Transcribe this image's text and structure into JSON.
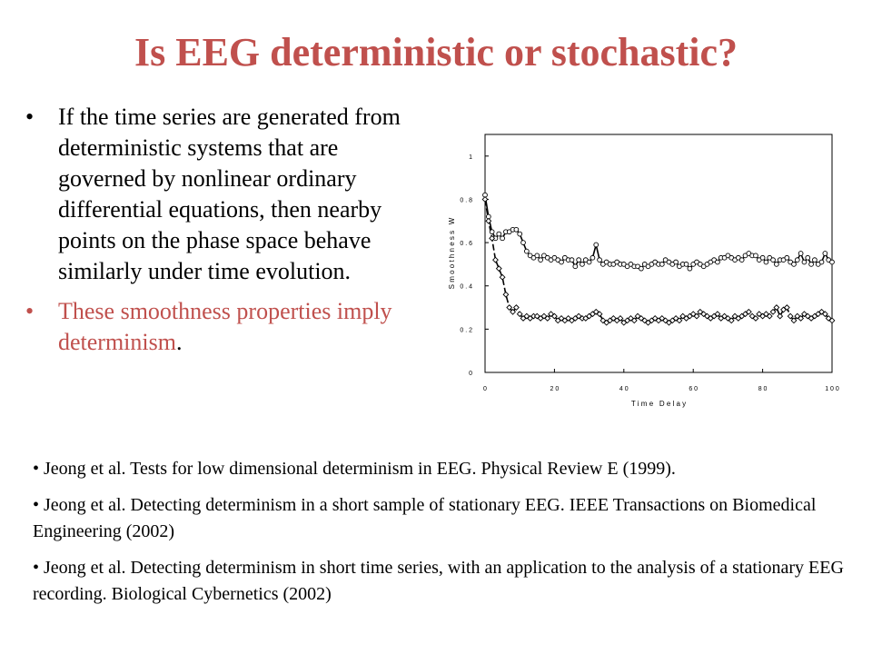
{
  "slide": {
    "title": "Is EEG deterministic or stochastic?",
    "bullet_char": "•",
    "bullets": [
      "If the time series are generated from deterministic systems that are governed by nonlinear ordinary differential equations, then nearby points on the phase space behave similarly under time evolution.",
      "These smoothness properties imply determinism"
    ],
    "bullet2_period": ".",
    "references": [
      "• Jeong et al. Tests for low dimensional determinism in EEG. Physical Review E (1999).",
      "• Jeong et al. Detecting determinism in a short sample of stationary EEG. IEEE Transactions on Biomedical Engineering (2002)",
      "• Jeong et al. Detecting determinism in short time series, with an application to the analysis of a stationary EEG recording. Biological Cybernetics (2002)"
    ]
  },
  "chart_data": {
    "type": "line",
    "xlabel": "T i m e   D e l a y",
    "ylabel": "S m o o t h n e s s   W",
    "xlim": [
      0,
      100
    ],
    "ylim": [
      0,
      1.1
    ],
    "xticks": [
      0,
      20,
      40,
      60,
      80,
      100
    ],
    "xtick_labels": [
      "0",
      "2 0",
      "4 0",
      "6 0",
      "8 0",
      "1 0 0"
    ],
    "yticks": [
      0,
      0.2,
      0.4,
      0.6,
      0.8,
      1
    ],
    "ytick_labels": [
      "0",
      "0 . 2",
      "0 . 4",
      "0 . 6",
      "0 . 8",
      "1"
    ],
    "grid": false,
    "series": [
      {
        "marker": "circle",
        "x": [
          0,
          1,
          2,
          3,
          4,
          5,
          6,
          7,
          8,
          9,
          10,
          11,
          12,
          13,
          14,
          15,
          16,
          17,
          18,
          19,
          20,
          21,
          22,
          23,
          24,
          25,
          26,
          27,
          28,
          29,
          30,
          31,
          32,
          33,
          34,
          35,
          36,
          37,
          38,
          39,
          40,
          41,
          42,
          43,
          44,
          45,
          46,
          47,
          48,
          49,
          50,
          51,
          52,
          53,
          54,
          55,
          56,
          57,
          58,
          59,
          60,
          61,
          62,
          63,
          64,
          65,
          66,
          67,
          68,
          69,
          70,
          71,
          72,
          73,
          74,
          75,
          76,
          77,
          78,
          79,
          80,
          81,
          82,
          83,
          84,
          85,
          86,
          87,
          88,
          89,
          90,
          91,
          92,
          93,
          94,
          95,
          96,
          97,
          98,
          99,
          100
        ],
        "y": [
          0.82,
          0.72,
          0.65,
          0.62,
          0.64,
          0.62,
          0.65,
          0.65,
          0.66,
          0.66,
          0.64,
          0.6,
          0.56,
          0.54,
          0.53,
          0.54,
          0.52,
          0.54,
          0.53,
          0.52,
          0.53,
          0.52,
          0.51,
          0.53,
          0.52,
          0.52,
          0.49,
          0.52,
          0.5,
          0.52,
          0.51,
          0.53,
          0.59,
          0.52,
          0.5,
          0.51,
          0.5,
          0.5,
          0.51,
          0.5,
          0.5,
          0.49,
          0.5,
          0.49,
          0.49,
          0.48,
          0.5,
          0.49,
          0.5,
          0.51,
          0.5,
          0.5,
          0.52,
          0.51,
          0.5,
          0.51,
          0.49,
          0.5,
          0.5,
          0.48,
          0.5,
          0.51,
          0.5,
          0.49,
          0.5,
          0.51,
          0.52,
          0.51,
          0.53,
          0.53,
          0.54,
          0.53,
          0.52,
          0.53,
          0.52,
          0.54,
          0.55,
          0.54,
          0.54,
          0.52,
          0.53,
          0.51,
          0.53,
          0.52,
          0.5,
          0.52,
          0.52,
          0.53,
          0.51,
          0.5,
          0.52,
          0.55,
          0.51,
          0.53,
          0.5,
          0.52,
          0.5,
          0.51,
          0.55,
          0.52,
          0.51
        ]
      },
      {
        "marker": "diamond",
        "x": [
          0,
          1,
          2,
          3,
          4,
          5,
          6,
          7,
          8,
          9,
          10,
          11,
          12,
          13,
          14,
          15,
          16,
          17,
          18,
          19,
          20,
          21,
          22,
          23,
          24,
          25,
          26,
          27,
          28,
          29,
          30,
          31,
          32,
          33,
          34,
          35,
          36,
          37,
          38,
          39,
          40,
          41,
          42,
          43,
          44,
          45,
          46,
          47,
          48,
          49,
          50,
          51,
          52,
          53,
          54,
          55,
          56,
          57,
          58,
          59,
          60,
          61,
          62,
          63,
          64,
          65,
          66,
          67,
          68,
          69,
          70,
          71,
          72,
          73,
          74,
          75,
          76,
          77,
          78,
          79,
          80,
          81,
          82,
          83,
          84,
          85,
          86,
          87,
          88,
          89,
          90,
          91,
          92,
          93,
          94,
          95,
          96,
          97,
          98,
          99,
          100
        ],
        "y": [
          0.8,
          0.7,
          0.62,
          0.52,
          0.48,
          0.44,
          0.36,
          0.3,
          0.28,
          0.3,
          0.27,
          0.25,
          0.26,
          0.25,
          0.26,
          0.26,
          0.25,
          0.26,
          0.25,
          0.27,
          0.26,
          0.24,
          0.25,
          0.24,
          0.25,
          0.24,
          0.25,
          0.26,
          0.25,
          0.25,
          0.26,
          0.27,
          0.28,
          0.27,
          0.24,
          0.23,
          0.24,
          0.25,
          0.24,
          0.25,
          0.23,
          0.24,
          0.25,
          0.24,
          0.26,
          0.25,
          0.24,
          0.23,
          0.24,
          0.25,
          0.24,
          0.25,
          0.24,
          0.23,
          0.24,
          0.25,
          0.24,
          0.26,
          0.25,
          0.26,
          0.27,
          0.26,
          0.28,
          0.27,
          0.26,
          0.25,
          0.26,
          0.27,
          0.25,
          0.26,
          0.25,
          0.24,
          0.26,
          0.25,
          0.26,
          0.27,
          0.28,
          0.26,
          0.25,
          0.27,
          0.26,
          0.27,
          0.26,
          0.28,
          0.3,
          0.26,
          0.29,
          0.3,
          0.26,
          0.24,
          0.26,
          0.25,
          0.27,
          0.26,
          0.25,
          0.26,
          0.27,
          0.28,
          0.27,
          0.25,
          0.24
        ]
      }
    ]
  }
}
